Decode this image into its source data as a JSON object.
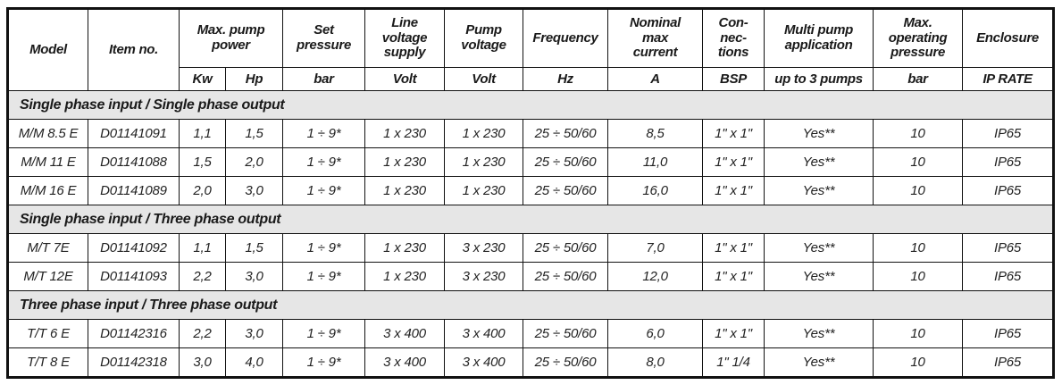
{
  "table": {
    "columns": {
      "model": "Model",
      "item_no": "Item no.",
      "max_pump_power": "Max. pump\npower",
      "set_pressure": "Set\npressure",
      "line_voltage_supply": "Line\nvoltage\nsupply",
      "pump_voltage": "Pump\nvoltage",
      "frequency": "Frequency",
      "nominal_max_current": "Nominal\nmax\ncurrent",
      "connections": "Con-\nnec-\ntions",
      "multi_pump_application": "Multi pump\napplication",
      "max_operating_pressure": "Max.\noperating\npressure",
      "enclosure": "Enclosure"
    },
    "units": [
      "Kw",
      "Hp",
      "bar",
      "Volt",
      "Volt",
      "Hz",
      "A",
      "BSP",
      "up to 3 pumps",
      "bar",
      "IP RATE"
    ],
    "column_keys": [
      "model",
      "item-no",
      "kw",
      "hp",
      "set-pressure-bar",
      "line-voltage-volt",
      "pump-voltage-volt",
      "frequency-hz",
      "nominal-current-a",
      "connections-bsp",
      "multi-pump",
      "max-operating-pressure-bar",
      "ip-rate"
    ],
    "sections": [
      {
        "title": "Single phase input / Single phase output",
        "rows": [
          [
            "M/M 8.5 E",
            "D01141091",
            "1,1",
            "1,5",
            "1 ÷ 9*",
            "1 x 230",
            "1 x 230",
            "25 ÷ 50/60",
            "8,5",
            "1\" x 1\"",
            "Yes**",
            "10",
            "IP65"
          ],
          [
            "M/M 11 E",
            "D01141088",
            "1,5",
            "2,0",
            "1 ÷ 9*",
            "1 x 230",
            "1 x 230",
            "25 ÷ 50/60",
            "11,0",
            "1\" x 1\"",
            "Yes**",
            "10",
            "IP65"
          ],
          [
            "M/M 16 E",
            "D01141089",
            "2,0",
            "3,0",
            "1 ÷ 9*",
            "1 x 230",
            "1 x 230",
            "25 ÷ 50/60",
            "16,0",
            "1\" x 1\"",
            "Yes**",
            "10",
            "IP65"
          ]
        ]
      },
      {
        "title": "Single phase input / Three phase output",
        "rows": [
          [
            "M/T 7E",
            "D01141092",
            "1,1",
            "1,5",
            "1 ÷ 9*",
            "1 x 230",
            "3 x 230",
            "25 ÷ 50/60",
            "7,0",
            "1\" x 1\"",
            "Yes**",
            "10",
            "IP65"
          ],
          [
            "M/T 12E",
            "D01141093",
            "2,2",
            "3,0",
            "1 ÷ 9*",
            "1 x 230",
            "3 x 230",
            "25 ÷ 50/60",
            "12,0",
            "1\" x 1\"",
            "Yes**",
            "10",
            "IP65"
          ]
        ]
      },
      {
        "title": "Three phase input / Three phase output",
        "rows": [
          [
            "T/T 6 E",
            "D01142316",
            "2,2",
            "3,0",
            "1 ÷ 9*",
            "3 x 400",
            "3 x 400",
            "25 ÷ 50/60",
            "6,0",
            "1\" x 1\"",
            "Yes**",
            "10",
            "IP65"
          ],
          [
            "T/T 8 E",
            "D01142318",
            "3,0",
            "4,0",
            "1 ÷ 9*",
            "3 x 400",
            "3 x 400",
            "25 ÷ 50/60",
            "8,0",
            "1\" 1/4",
            "Yes**",
            "10",
            "IP65"
          ]
        ]
      }
    ],
    "colors": {
      "grid_line": "#111111",
      "section_band": "#e6e6e6",
      "text": "#1a1a1a"
    }
  }
}
